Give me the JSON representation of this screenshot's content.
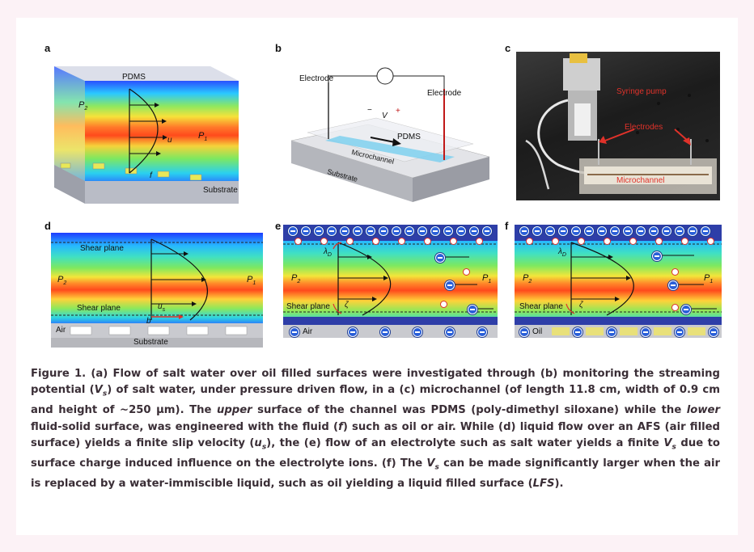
{
  "panels": {
    "a": {
      "label": "a",
      "pdms": "PDMS",
      "p2": "P",
      "p2_sub": "2",
      "p1": "P",
      "p1_sub": "1",
      "u": "u",
      "f": "f",
      "substrate": "Substrate"
    },
    "b": {
      "label": "b",
      "electrode_left": "Electrode",
      "electrode_right": "Electrode",
      "meter": "V",
      "minus": "−",
      "plus": "+",
      "pdms": "PDMS",
      "microchannel": "Microchannel",
      "substrate": "Substrate"
    },
    "c": {
      "label": "c",
      "syringe_pump": "Syringe pump",
      "electrodes": "Electrodes",
      "microchannel": "Microchannel"
    },
    "d": {
      "label": "d",
      "shear_top": "Shear plane",
      "shear_bottom": "Shear plane",
      "p2": "P",
      "p2_sub": "2",
      "p1": "P",
      "p1_sub": "1",
      "us": "u",
      "us_sub": "s",
      "b": "b",
      "air": "Air",
      "substrate": "Substrate"
    },
    "e": {
      "label": "e",
      "lambda": "λ",
      "lambda_sub": "D",
      "p2": "P",
      "p2_sub": "2",
      "p1": "P",
      "p1_sub": "1",
      "shear": "Shear plane",
      "zeta": "ζ",
      "air": "Air"
    },
    "f": {
      "label": "f",
      "lambda": "λ",
      "lambda_sub": "D",
      "p2": "P",
      "p2_sub": "2",
      "p1": "P",
      "p1_sub": "1",
      "shear": "Shear plane",
      "zeta": "ζ",
      "oil": "Oil"
    }
  },
  "caption": {
    "s1": "Figure 1. (a) Flow of salt water over oil filled surfaces were investigated through (b) monitoring the streaming potential (",
    "vs1": "V",
    "vs1_sub": "s",
    "s2": ") of salt water, under pressure driven flow, in a (c) microchannel (of length 11.8 cm, width of 0.9 cm and height of ~250 μm). The ",
    "upper": "upper",
    "s3": " surface of the channel was PDMS (poly-dimethyl siloxane) while the ",
    "lower": "lower",
    "s4": " fluid-solid surface, was engineered with the fluid (",
    "f": "f",
    "s5": ") such as oil or air. While (d) liquid flow over an AFS (air filled surface) yields a finite slip velocity (",
    "us": "u",
    "us_sub": "s",
    "s6": "), the (e) flow of an electrolyte such as salt water yields a finite ",
    "vs2": "V",
    "vs2_sub": "s",
    "s7": " due to surface charge induced influence on the electrolyte ions. (f) The ",
    "vs3": "V",
    "vs3_sub": "s",
    "s8": " can be made significantly larger when the air is replaced by a water-immiscible liquid, such as oil yielding a liquid filled surface (",
    "lfs": "LFS",
    "s9": ")."
  },
  "colors": {
    "page_bg": "#fcf2f6",
    "caption_text": "#3a2e36",
    "annotation_red": "#e0322a",
    "ion_blue": "#2a5fd8"
  }
}
